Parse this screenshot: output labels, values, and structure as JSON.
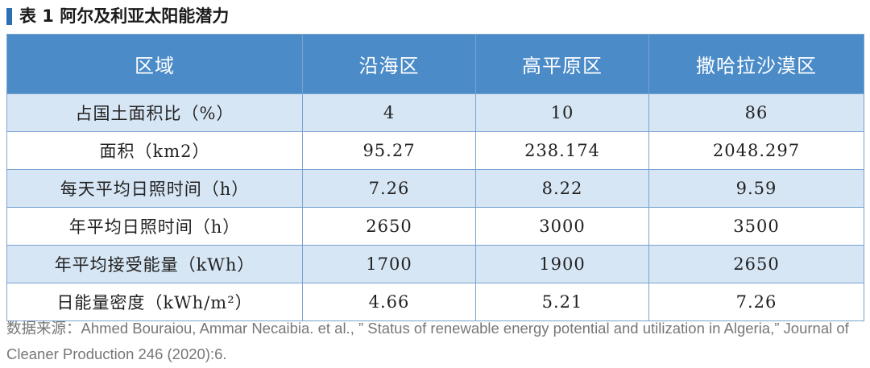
{
  "title": "表 1  阿尔及利亚太阳能潜力",
  "table": {
    "header": [
      "区域",
      "沿海区",
      "高平原区",
      "撒哈拉沙漠区"
    ],
    "rows": [
      [
        "占国土面积比（%）",
        "4",
        "10",
        "86"
      ],
      [
        "面积（km2）",
        "95.27",
        "238.174",
        "2048.297"
      ],
      [
        "每天平均日照时间（h）",
        "7.26",
        "8.22",
        "9.59"
      ],
      [
        "年平均日照时间（h）",
        "2650",
        "3000",
        "3500"
      ],
      [
        "年平均接受能量（kWh）",
        "1700",
        "1900",
        "2650"
      ],
      [
        "日能量密度（kWh/m²）",
        "4.66",
        "5.21",
        "7.26"
      ]
    ]
  },
  "source": "数据来源：Ahmed Bouraiou, Ammar Necaibia. et al., ” Status of renewable energy potential and utilization in Algeria,” Journal of Cleaner Production 246 (2020):6."
}
